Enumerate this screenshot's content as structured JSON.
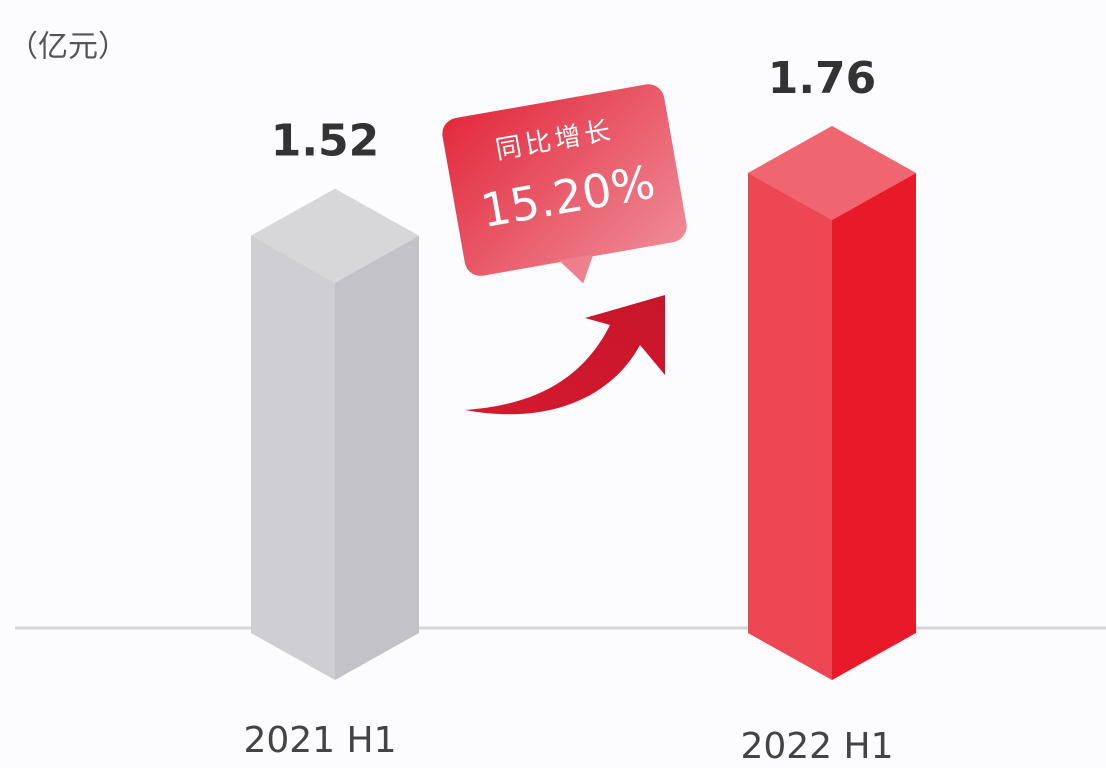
{
  "chart_data": {
    "type": "bar3d",
    "unit": "（亿元）",
    "categories": [
      "2021 H1",
      "2022 H1"
    ],
    "values": [
      1.52,
      1.76
    ],
    "colors": [
      "#bdbcc2",
      "#e60012"
    ],
    "annotation": {
      "label": "同比增长",
      "text": "15.20%"
    }
  }
}
